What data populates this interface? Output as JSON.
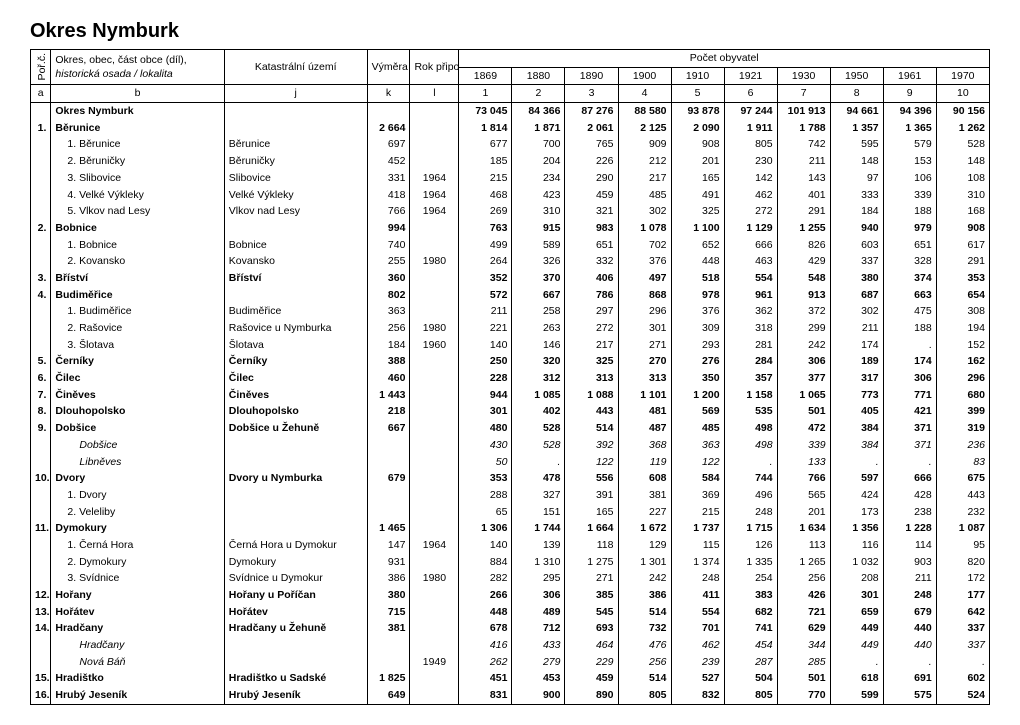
{
  "title": "Okres Nymburk",
  "header": {
    "por": "Poř.č.",
    "okres_line1": "Okres, obec, část obce (díl),",
    "okres_line2": "historická osada / lokalita",
    "ku": "Katastrální území",
    "vymera": "Výměra v ha",
    "rok": "Rok připojení",
    "pocet": "Počet obyvatel",
    "years": [
      "1869",
      "1880",
      "1890",
      "1900",
      "1910",
      "1921",
      "1930",
      "1950",
      "1961",
      "1970"
    ],
    "letters": [
      "a",
      "b",
      "j",
      "k",
      "l",
      "1",
      "2",
      "3",
      "4",
      "5",
      "6",
      "7",
      "8",
      "9",
      "10"
    ]
  },
  "rows": [
    {
      "por": "",
      "name": "Okres Nymburk",
      "ku": "",
      "vym": "",
      "rok": "",
      "v": [
        "73 045",
        "84 366",
        "87 276",
        "88 580",
        "93 878",
        "97 244",
        "101 913",
        "94 661",
        "94 396",
        "90 156"
      ],
      "bold": true,
      "lvl": 0
    },
    {
      "por": "1.",
      "name": "Běrunice",
      "ku": "",
      "vym": "2 664",
      "rok": "",
      "v": [
        "1 814",
        "1 871",
        "2 061",
        "2 125",
        "2 090",
        "1 911",
        "1 788",
        "1 357",
        "1 365",
        "1 262"
      ],
      "bold": true,
      "lvl": 0
    },
    {
      "por": "",
      "name": "1. Běrunice",
      "ku": "Běrunice",
      "vym": "697",
      "rok": "",
      "v": [
        "677",
        "700",
        "765",
        "909",
        "908",
        "805",
        "742",
        "595",
        "579",
        "528"
      ],
      "lvl": 1
    },
    {
      "por": "",
      "name": "2. Běruničky",
      "ku": "Běruničky",
      "vym": "452",
      "rok": "",
      "v": [
        "185",
        "204",
        "226",
        "212",
        "201",
        "230",
        "211",
        "148",
        "153",
        "148"
      ],
      "lvl": 1
    },
    {
      "por": "",
      "name": "3. Slibovice",
      "ku": "Slibovice",
      "vym": "331",
      "rok": "1964",
      "v": [
        "215",
        "234",
        "290",
        "217",
        "165",
        "142",
        "143",
        "97",
        "106",
        "108"
      ],
      "lvl": 1
    },
    {
      "por": "",
      "name": "4. Velké Výkleky",
      "ku": "Velké Výkleky",
      "vym": "418",
      "rok": "1964",
      "v": [
        "468",
        "423",
        "459",
        "485",
        "491",
        "462",
        "401",
        "333",
        "339",
        "310"
      ],
      "lvl": 1
    },
    {
      "por": "",
      "name": "5. Vlkov nad Lesy",
      "ku": "Vlkov nad Lesy",
      "vym": "766",
      "rok": "1964",
      "v": [
        "269",
        "310",
        "321",
        "302",
        "325",
        "272",
        "291",
        "184",
        "188",
        "168"
      ],
      "lvl": 1
    },
    {
      "por": "2.",
      "name": "Bobnice",
      "ku": "",
      "vym": "994",
      "rok": "",
      "v": [
        "763",
        "915",
        "983",
        "1 078",
        "1 100",
        "1 129",
        "1 255",
        "940",
        "979",
        "908"
      ],
      "bold": true,
      "lvl": 0
    },
    {
      "por": "",
      "name": "1. Bobnice",
      "ku": "Bobnice",
      "vym": "740",
      "rok": "",
      "v": [
        "499",
        "589",
        "651",
        "702",
        "652",
        "666",
        "826",
        "603",
        "651",
        "617"
      ],
      "lvl": 1
    },
    {
      "por": "",
      "name": "2. Kovansko",
      "ku": "Kovansko",
      "vym": "255",
      "rok": "1980",
      "v": [
        "264",
        "326",
        "332",
        "376",
        "448",
        "463",
        "429",
        "337",
        "328",
        "291"
      ],
      "lvl": 1
    },
    {
      "por": "3.",
      "name": "Bříství",
      "ku": "Bříství",
      "vym": "360",
      "rok": "",
      "v": [
        "352",
        "370",
        "406",
        "497",
        "518",
        "554",
        "548",
        "380",
        "374",
        "353"
      ],
      "bold": true,
      "lvl": 0
    },
    {
      "por": "4.",
      "name": "Budiměřice",
      "ku": "",
      "vym": "802",
      "rok": "",
      "v": [
        "572",
        "667",
        "786",
        "868",
        "978",
        "961",
        "913",
        "687",
        "663",
        "654"
      ],
      "bold": true,
      "lvl": 0
    },
    {
      "por": "",
      "name": "1. Budiměřice",
      "ku": "Budiměřice",
      "vym": "363",
      "rok": "",
      "v": [
        "211",
        "258",
        "297",
        "296",
        "376",
        "362",
        "372",
        "302",
        "475",
        "308"
      ],
      "lvl": 1
    },
    {
      "por": "",
      "name": "2. Rašovice",
      "ku": "Rašovice u Nymburka",
      "vym": "256",
      "rok": "1980",
      "v": [
        "221",
        "263",
        "272",
        "301",
        "309",
        "318",
        "299",
        "211",
        "188",
        "194"
      ],
      "lvl": 1
    },
    {
      "por": "",
      "name": "3. Šlotava",
      "ku": "Šlotava",
      "vym": "184",
      "rok": "1960",
      "v": [
        "140",
        "146",
        "217",
        "271",
        "293",
        "281",
        "242",
        "174",
        ".",
        "152"
      ],
      "lvl": 1
    },
    {
      "por": "5.",
      "name": "Černíky",
      "ku": "Černíky",
      "vym": "388",
      "rok": "",
      "v": [
        "250",
        "320",
        "325",
        "270",
        "276",
        "284",
        "306",
        "189",
        "174",
        "162"
      ],
      "bold": true,
      "lvl": 0
    },
    {
      "por": "6.",
      "name": "Čilec",
      "ku": "Čilec",
      "vym": "460",
      "rok": "",
      "v": [
        "228",
        "312",
        "313",
        "313",
        "350",
        "357",
        "377",
        "317",
        "306",
        "296"
      ],
      "bold": true,
      "lvl": 0
    },
    {
      "por": "7.",
      "name": "Činěves",
      "ku": "Činěves",
      "vym": "1 443",
      "rok": "",
      "v": [
        "944",
        "1 085",
        "1 088",
        "1 101",
        "1 200",
        "1 158",
        "1 065",
        "773",
        "771",
        "680"
      ],
      "bold": true,
      "lvl": 0
    },
    {
      "por": "8.",
      "name": "Dlouhopolsko",
      "ku": "Dlouhopolsko",
      "vym": "218",
      "rok": "",
      "v": [
        "301",
        "402",
        "443",
        "481",
        "569",
        "535",
        "501",
        "405",
        "421",
        "399"
      ],
      "bold": true,
      "lvl": 0
    },
    {
      "por": "9.",
      "name": "Dobšice",
      "ku": "Dobšice u Žehuně",
      "vym": "667",
      "rok": "",
      "v": [
        "480",
        "528",
        "514",
        "487",
        "485",
        "498",
        "472",
        "384",
        "371",
        "319"
      ],
      "bold": true,
      "lvl": 0
    },
    {
      "por": "",
      "name": "Dobšice",
      "ku": "",
      "vym": "",
      "rok": "",
      "v": [
        "430",
        "528",
        "392",
        "368",
        "363",
        "498",
        "339",
        "384",
        "371",
        "236"
      ],
      "ital": true,
      "lvl": 2
    },
    {
      "por": "",
      "name": "Libněves",
      "ku": "",
      "vym": "",
      "rok": "",
      "v": [
        "50",
        ".",
        "122",
        "119",
        "122",
        ".",
        "133",
        ".",
        ".",
        "83"
      ],
      "ital": true,
      "lvl": 2
    },
    {
      "por": "10.",
      "name": "Dvory",
      "ku": "Dvory u Nymburka",
      "vym": "679",
      "rok": "",
      "v": [
        "353",
        "478",
        "556",
        "608",
        "584",
        "744",
        "766",
        "597",
        "666",
        "675"
      ],
      "bold": true,
      "lvl": 0
    },
    {
      "por": "",
      "name": "1. Dvory",
      "ku": "",
      "vym": "",
      "rok": "",
      "v": [
        "288",
        "327",
        "391",
        "381",
        "369",
        "496",
        "565",
        "424",
        "428",
        "443"
      ],
      "lvl": 1
    },
    {
      "por": "",
      "name": "2. Veleliby",
      "ku": "",
      "vym": "",
      "rok": "",
      "v": [
        "65",
        "151",
        "165",
        "227",
        "215",
        "248",
        "201",
        "173",
        "238",
        "232"
      ],
      "lvl": 1
    },
    {
      "por": "11.",
      "name": "Dymokury",
      "ku": "",
      "vym": "1 465",
      "rok": "",
      "v": [
        "1 306",
        "1 744",
        "1 664",
        "1 672",
        "1 737",
        "1 715",
        "1 634",
        "1 356",
        "1 228",
        "1 087"
      ],
      "bold": true,
      "lvl": 0
    },
    {
      "por": "",
      "name": "1. Černá Hora",
      "ku": "Černá Hora u Dymokur",
      "vym": "147",
      "rok": "1964",
      "v": [
        "140",
        "139",
        "118",
        "129",
        "115",
        "126",
        "113",
        "116",
        "114",
        "95"
      ],
      "lvl": 1
    },
    {
      "por": "",
      "name": "2. Dymokury",
      "ku": "Dymokury",
      "vym": "931",
      "rok": "",
      "v": [
        "884",
        "1 310",
        "1 275",
        "1 301",
        "1 374",
        "1 335",
        "1 265",
        "1 032",
        "903",
        "820"
      ],
      "lvl": 1
    },
    {
      "por": "",
      "name": "3. Svídnice",
      "ku": "Svídnice u Dymokur",
      "vym": "386",
      "rok": "1980",
      "v": [
        "282",
        "295",
        "271",
        "242",
        "248",
        "254",
        "256",
        "208",
        "211",
        "172"
      ],
      "lvl": 1
    },
    {
      "por": "12.",
      "name": "Hořany",
      "ku": "Hořany u Poříčan",
      "vym": "380",
      "rok": "",
      "v": [
        "266",
        "306",
        "385",
        "386",
        "411",
        "383",
        "426",
        "301",
        "248",
        "177"
      ],
      "bold": true,
      "lvl": 0
    },
    {
      "por": "13.",
      "name": "Hořátev",
      "ku": "Hořátev",
      "vym": "715",
      "rok": "",
      "v": [
        "448",
        "489",
        "545",
        "514",
        "554",
        "682",
        "721",
        "659",
        "679",
        "642"
      ],
      "bold": true,
      "lvl": 0
    },
    {
      "por": "14.",
      "name": "Hradčany",
      "ku": "Hradčany u Žehuně",
      "vym": "381",
      "rok": "",
      "v": [
        "678",
        "712",
        "693",
        "732",
        "701",
        "741",
        "629",
        "449",
        "440",
        "337"
      ],
      "bold": true,
      "lvl": 0
    },
    {
      "por": "",
      "name": "Hradčany",
      "ku": "",
      "vym": "",
      "rok": "",
      "v": [
        "416",
        "433",
        "464",
        "476",
        "462",
        "454",
        "344",
        "449",
        "440",
        "337"
      ],
      "ital": true,
      "lvl": 2
    },
    {
      "por": "",
      "name": "Nová Báň",
      "ku": "",
      "vym": "",
      "rok": "1949",
      "v": [
        "262",
        "279",
        "229",
        "256",
        "239",
        "287",
        "285",
        ".",
        ".",
        "."
      ],
      "ital": true,
      "lvl": 2
    },
    {
      "por": "15.",
      "name": "Hradištko",
      "ku": "Hradištko u Sadské",
      "vym": "1 825",
      "rok": "",
      "v": [
        "451",
        "453",
        "459",
        "514",
        "527",
        "504",
        "501",
        "618",
        "691",
        "602"
      ],
      "bold": true,
      "lvl": 0
    },
    {
      "por": "16.",
      "name": "Hrubý Jeseník",
      "ku": "Hrubý Jeseník",
      "vym": "649",
      "rok": "",
      "v": [
        "831",
        "900",
        "890",
        "805",
        "832",
        "805",
        "770",
        "599",
        "575",
        "524"
      ],
      "bold": true,
      "lvl": 0
    }
  ]
}
